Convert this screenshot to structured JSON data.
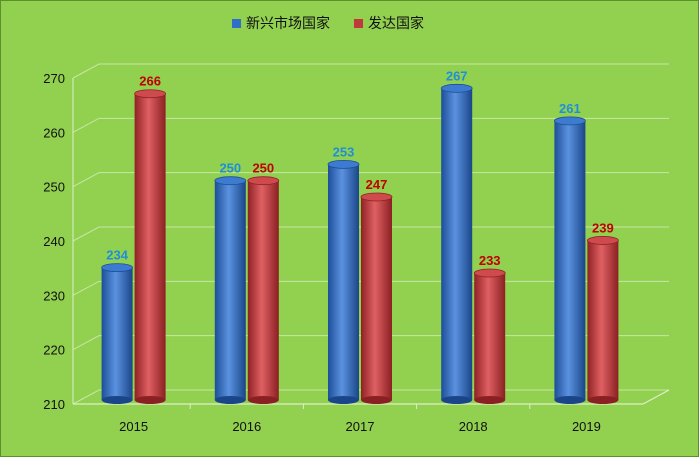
{
  "chart_data": {
    "type": "bar",
    "title": "",
    "xlabel": "",
    "ylabel": "",
    "categories": [
      "2015",
      "2016",
      "2017",
      "2018",
      "2019"
    ],
    "series": [
      {
        "name": "新兴市场国家",
        "values": [
          234,
          250,
          253,
          267,
          261
        ],
        "color": "#2f6fc8",
        "label_color": "#1f8fd6"
      },
      {
        "name": "发达国家",
        "values": [
          266,
          250,
          247,
          233,
          239
        ],
        "color": "#c0393c",
        "label_color": "#c00000"
      }
    ],
    "ylim": [
      210,
      270
    ],
    "yticks": [
      210,
      220,
      230,
      240,
      250,
      260,
      270
    ],
    "grid": true,
    "legend_position": "top",
    "background_color": "#92d050",
    "style": "3d-cylinder"
  }
}
